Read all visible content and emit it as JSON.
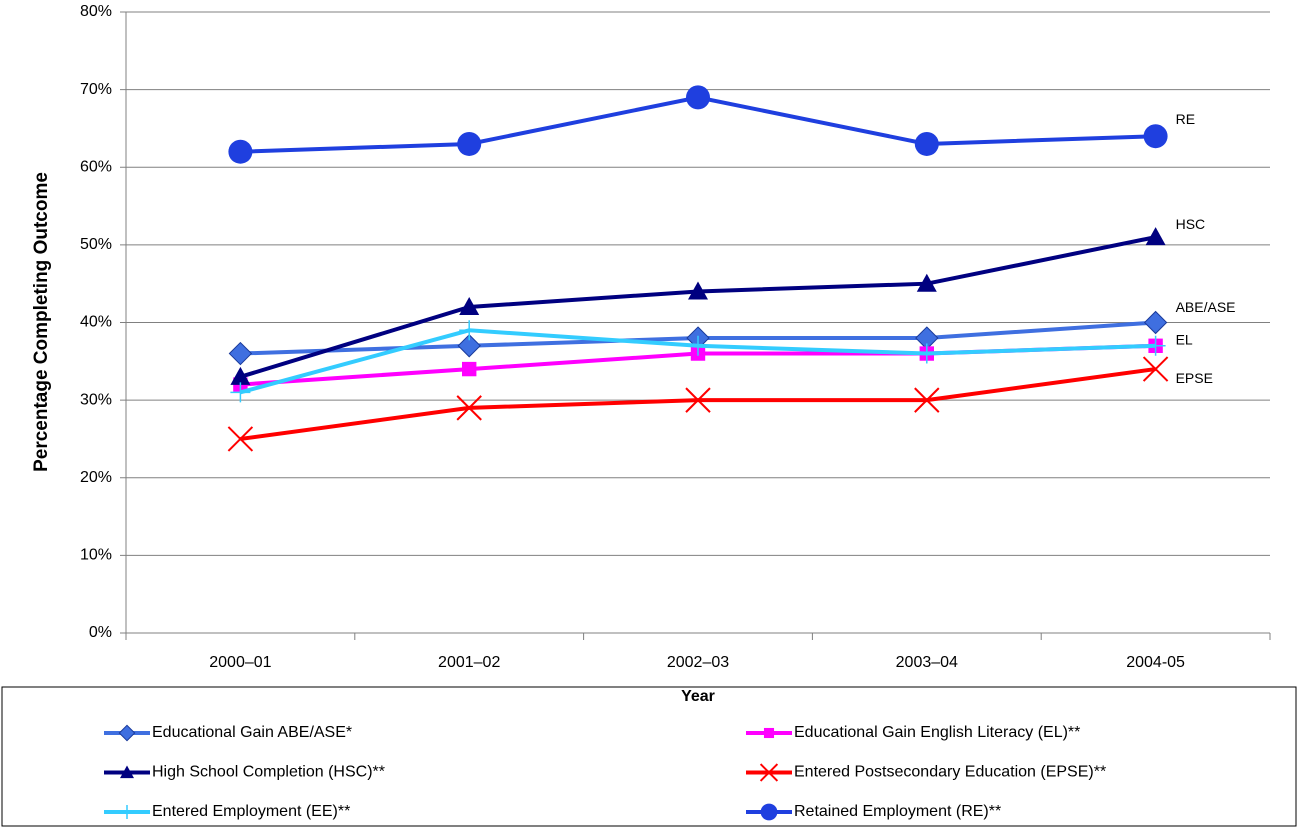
{
  "chart_data": {
    "type": "line",
    "y_label": "Percentage Completing Outcome",
    "x_label": "Year",
    "categories": [
      "2000–01",
      "2001–02",
      "2002–03",
      "2003–04",
      "2004-05"
    ],
    "ylim": [
      0,
      80
    ],
    "yticks": [
      {
        "value": 0,
        "label": "0%"
      },
      {
        "value": 10,
        "label": "10%"
      },
      {
        "value": 20,
        "label": "20%"
      },
      {
        "value": 30,
        "label": "30%"
      },
      {
        "value": 40,
        "label": "40%"
      },
      {
        "value": 50,
        "label": "50%"
      },
      {
        "value": 60,
        "label": "60%"
      },
      {
        "value": 70,
        "label": "70%"
      },
      {
        "value": 80,
        "label": "80%"
      }
    ],
    "grid": true,
    "legend": "bottom",
    "series": [
      {
        "name": "Educational Gain ABE/ASE*",
        "color": "#3f6fe0",
        "marker": "diamond",
        "label": "ABE/ASE",
        "values": [
          36,
          37,
          38,
          38,
          40
        ]
      },
      {
        "name": "Educational Gain English Literacy (EL)**",
        "color": "#ff00ff",
        "marker": "square",
        "label": "EL",
        "values": [
          32,
          34,
          36,
          36,
          37
        ]
      },
      {
        "name": "High School Completion (HSC)**",
        "color": "#000080",
        "marker": "triangle",
        "label": "HSC",
        "values": [
          33,
          42,
          44,
          45,
          51
        ]
      },
      {
        "name": "Entered Postsecondary Education (EPSE)**",
        "color": "#ff0000",
        "marker": "x",
        "label": "EPSE",
        "values": [
          25,
          29,
          30,
          30,
          34
        ]
      },
      {
        "name": "Entered Employment (EE)**",
        "color": "#33ccff",
        "marker": "plus",
        "values": [
          31,
          39,
          37,
          36,
          37
        ]
      },
      {
        "name": "Retained Employment (RE)**",
        "color": "#1f3fdf",
        "marker": "circle",
        "label": "RE",
        "values": [
          62,
          63,
          69,
          63,
          64
        ]
      }
    ]
  }
}
